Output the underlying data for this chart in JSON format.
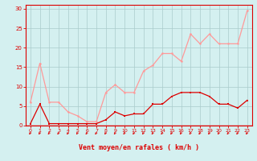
{
  "xlabel": "Vent moyen/en rafales ( km/h )",
  "background_color": "#d4f0f0",
  "grid_color": "#aacccc",
  "xlim": [
    -0.5,
    23.5
  ],
  "ylim": [
    0,
    31
  ],
  "yticks": [
    0,
    5,
    10,
    15,
    20,
    25,
    30
  ],
  "xticks": [
    0,
    1,
    2,
    3,
    4,
    5,
    6,
    7,
    8,
    9,
    10,
    11,
    12,
    13,
    14,
    15,
    16,
    17,
    18,
    19,
    20,
    21,
    22,
    23
  ],
  "rafales_color": "#ff9999",
  "moyen_color": "#dd0000",
  "axis_color": "#dd0000",
  "x": [
    0,
    1,
    2,
    3,
    4,
    5,
    6,
    7,
    8,
    9,
    10,
    11,
    12,
    13,
    14,
    15,
    16,
    17,
    18,
    19,
    20,
    21,
    22,
    23
  ],
  "rafales_y": [
    6,
    16,
    6,
    6,
    3.5,
    2.5,
    1,
    1,
    8.5,
    10.5,
    8.5,
    8.5,
    14,
    15.5,
    18.5,
    18.5,
    16.5,
    23.5,
    21,
    23.5,
    21,
    21,
    21,
    29.5
  ],
  "moyen_y": [
    0.5,
    5.5,
    0.5,
    0.5,
    0.5,
    0.5,
    0.5,
    0.5,
    1.5,
    3.5,
    2.5,
    3,
    3,
    5.5,
    5.5,
    7.5,
    8.5,
    8.5,
    8.5,
    7.5,
    5.5,
    5.5,
    4.5,
    6.5
  ]
}
